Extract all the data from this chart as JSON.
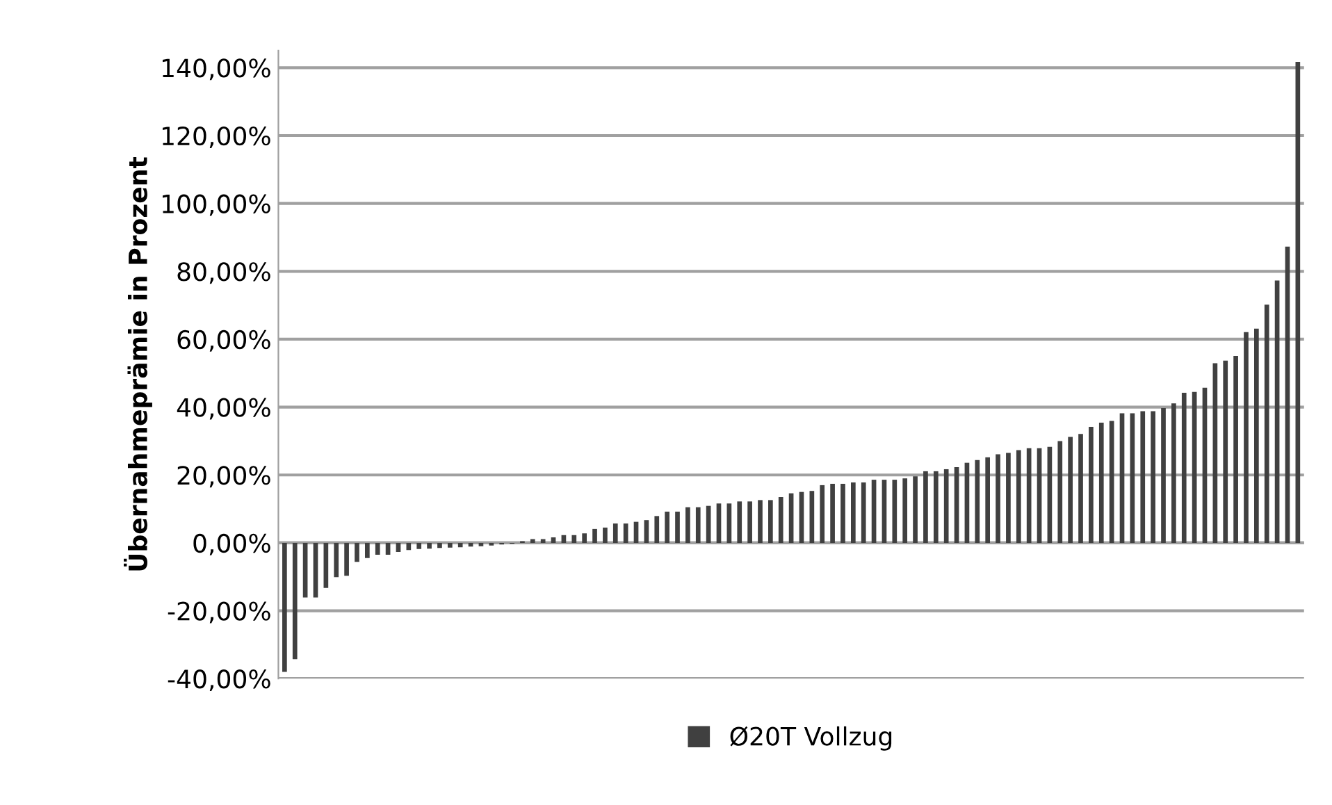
{
  "chart_data": {
    "type": "bar",
    "ylabel": "Übernahmeprämie in Prozent",
    "categories": [
      null,
      null,
      null,
      null,
      null,
      null,
      null,
      null,
      null,
      null,
      null,
      null,
      null,
      null,
      null,
      null,
      null,
      null,
      null,
      null,
      null,
      null,
      null,
      null,
      null,
      null,
      null,
      null,
      null,
      null,
      null,
      null,
      null,
      null,
      null,
      null,
      null,
      null,
      null,
      null,
      null,
      null,
      null,
      null,
      null,
      null,
      null,
      null,
      null,
      null,
      null,
      null,
      null,
      null,
      null,
      null,
      null,
      null,
      null,
      null,
      null,
      null,
      null,
      null,
      null,
      null,
      null,
      null,
      null,
      null,
      null,
      null,
      null,
      null,
      null,
      null,
      null,
      null,
      null,
      null,
      null,
      null,
      null,
      null,
      null,
      null,
      null,
      null,
      null,
      null,
      null,
      null,
      null,
      null,
      null,
      null,
      null,
      null,
      null
    ],
    "series": [
      {
        "name": "Ø20T Vollzug",
        "color": "#404040",
        "values": [
          -38,
          -34.3,
          -16.1,
          -16.1,
          -13.3,
          -10.1,
          -9.7,
          -5.6,
          -4.5,
          -3.5,
          -3.5,
          -2.7,
          -2.1,
          -1.8,
          -1.7,
          -1.5,
          -1.4,
          -1.3,
          -1.1,
          -1,
          -0.8,
          -0.5,
          -0.3,
          0.5,
          1.1,
          1.1,
          1.6,
          2.3,
          2.3,
          2.8,
          4.1,
          4.5,
          5.7,
          5.7,
          6.2,
          6.7,
          7.9,
          9.2,
          9.2,
          10.5,
          10.5,
          10.9,
          11.6,
          11.6,
          12.2,
          12.2,
          12.6,
          12.6,
          13.5,
          14.6,
          15.0,
          15.3,
          17.0,
          17.4,
          17.4,
          17.8,
          17.8,
          18.6,
          18.6,
          18.6,
          19.0,
          19.6,
          21.1,
          21.1,
          21.7,
          22.3,
          23.6,
          24.4,
          25.2,
          26.1,
          26.5,
          27.3,
          27.9,
          27.9,
          28.3,
          30.0,
          31.2,
          32.1,
          34.2,
          35.4,
          35.9,
          38.2,
          38.2,
          38.8,
          38.8,
          39.7,
          41.1,
          44.2,
          44.5,
          45.7,
          52.9,
          53.7,
          55.1,
          62.1,
          63.1,
          70.2,
          77.3,
          87.3,
          141.7
        ]
      }
    ],
    "ylim": [
      -40,
      145
    ],
    "yticks": [
      {
        "value": -40,
        "label": "-40,00%"
      },
      {
        "value": -20,
        "label": "-20,00%"
      },
      {
        "value": 0,
        "label": "0,00%"
      },
      {
        "value": 20,
        "label": "20,00%"
      },
      {
        "value": 40,
        "label": "40,00%"
      },
      {
        "value": 60,
        "label": "60,00%"
      },
      {
        "value": 80,
        "label": "80,00%"
      },
      {
        "value": 100,
        "label": "100,00%"
      },
      {
        "value": 120,
        "label": "120,00%"
      },
      {
        "value": 140,
        "label": "140,00%"
      }
    ],
    "grid": "y",
    "legend": "bottom"
  }
}
